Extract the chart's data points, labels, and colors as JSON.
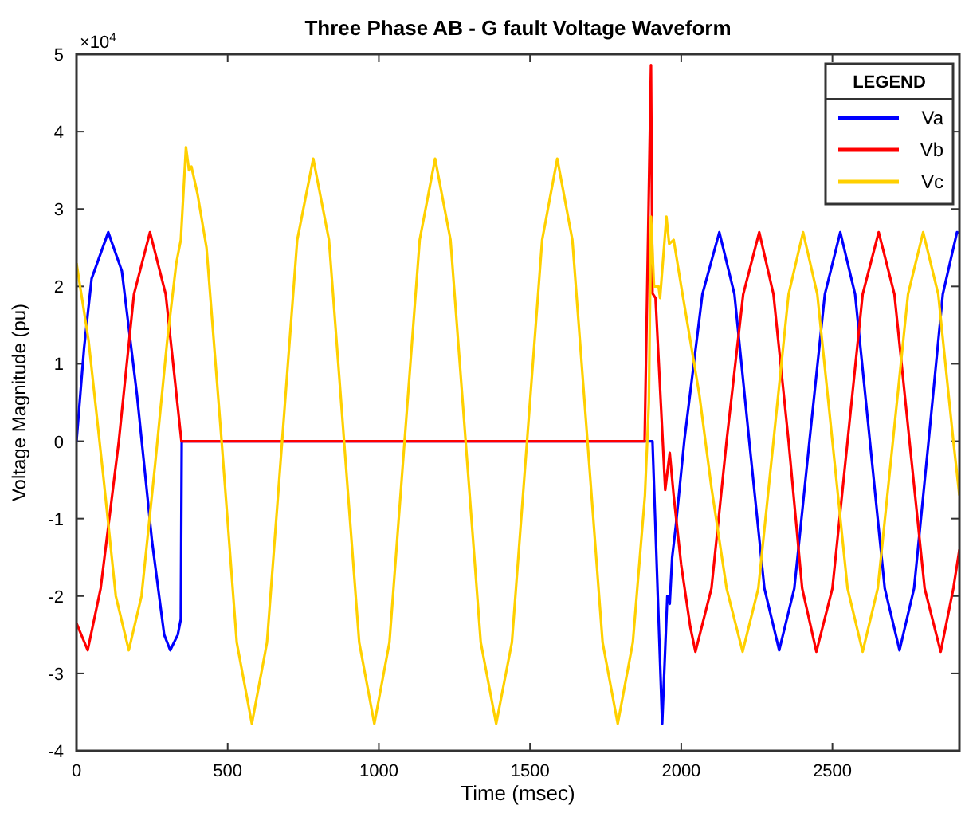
{
  "chart_data": {
    "type": "line",
    "title": "Three Phase AB  - G fault Voltage Waveform",
    "xlabel": "Time (msec)",
    "ylabel": "Voltage Magnitude (pu)",
    "legend_title": "LEGEND",
    "annotations": [
      "×10$^{4}$"
    ],
    "xlim": [
      0,
      2920
    ],
    "xticks": [
      0,
      500,
      1000,
      1500,
      2000,
      2500
    ],
    "ylim": [
      -4,
      5
    ],
    "yticks": [
      -4,
      -3,
      -2,
      -1,
      0,
      1,
      2,
      3,
      4,
      5
    ],
    "grid": false,
    "legend": "top right",
    "marker": "none",
    "line_style": "solid",
    "series": [
      {
        "name": "Va",
        "color": "#0000ff",
        "x": [
          0,
          25,
          50,
          105,
          150,
          200,
          250,
          290,
          310,
          335,
          345,
          348,
          1890,
          1905,
          1937,
          1954,
          1962,
          1970,
          1982,
          2010,
          2070,
          2126,
          2176,
          2225,
          2275,
          2324,
          2374,
          2424,
          2475,
          2526,
          2575,
          2624,
          2673,
          2722,
          2770,
          2818,
          2865,
          2912,
          2920
        ],
        "values": [
          0,
          1.2,
          2.1,
          2.7,
          2.2,
          0.6,
          -1.3,
          -2.5,
          -2.7,
          -2.5,
          -2.3,
          0,
          0,
          0,
          -3.65,
          -2.0,
          -2.1,
          -1.5,
          -1.1,
          0,
          1.9,
          2.7,
          1.9,
          0,
          -1.9,
          -2.7,
          -1.9,
          0,
          1.9,
          2.7,
          1.9,
          0,
          -1.9,
          -2.7,
          -1.9,
          0,
          1.9,
          2.7,
          2.69
        ]
      },
      {
        "name": "Vb",
        "color": "#ff0000",
        "x": [
          0,
          37,
          80,
          140,
          190,
          243,
          295,
          347,
          1879,
          1900,
          1905,
          1915,
          1947,
          1962,
          1975,
          2000,
          2030,
          2047,
          2100,
          2150,
          2205,
          2258,
          2305,
          2355,
          2400,
          2447,
          2500,
          2550,
          2600,
          2653,
          2705,
          2755,
          2805,
          2858,
          2900,
          2920
        ],
        "values": [
          -2.35,
          -2.7,
          -1.9,
          0,
          1.9,
          2.7,
          1.9,
          0,
          0,
          4.86,
          1.91,
          1.85,
          -0.63,
          -0.15,
          -0.7,
          -1.6,
          -2.4,
          -2.72,
          -1.9,
          0,
          1.9,
          2.7,
          1.9,
          0,
          -1.9,
          -2.72,
          -1.9,
          0,
          1.9,
          2.7,
          1.9,
          0,
          -1.9,
          -2.72,
          -1.9,
          -1.4
        ]
      },
      {
        "name": "Vc",
        "color": "#ffd000",
        "x": [
          0,
          40,
          90,
          130,
          173,
          215,
          260,
          300,
          330,
          345,
          362,
          372,
          380,
          400,
          430,
          480,
          530,
          580,
          630,
          680,
          730,
          783,
          835,
          885,
          935,
          985,
          1035,
          1085,
          1135,
          1186,
          1237,
          1287,
          1337,
          1388,
          1440,
          1490,
          1540,
          1590,
          1640,
          1690,
          1740,
          1790,
          1840,
          1880,
          1893,
          1900,
          1910,
          1925,
          1930,
          1951,
          1960,
          1975,
          2000,
          2060,
          2100,
          2150,
          2203,
          2255,
          2305,
          2355,
          2403,
          2450,
          2500,
          2550,
          2600,
          2650,
          2700,
          2750,
          2800,
          2850,
          2900,
          2920
        ],
        "values": [
          2.3,
          1.3,
          -0.5,
          -2.0,
          -2.7,
          -2.0,
          -0.3,
          1.3,
          2.3,
          2.6,
          3.8,
          3.5,
          3.55,
          3.2,
          2.5,
          0,
          -2.6,
          -3.65,
          -2.6,
          0,
          2.6,
          3.65,
          2.6,
          0,
          -2.6,
          -3.65,
          -2.6,
          0,
          2.6,
          3.65,
          2.6,
          0,
          -2.6,
          -3.65,
          -2.6,
          0,
          2.6,
          3.65,
          2.6,
          0,
          -2.6,
          -3.65,
          -2.6,
          -0.7,
          0.5,
          2.9,
          2.0,
          2.0,
          1.85,
          2.9,
          2.55,
          2.6,
          2.0,
          0.6,
          -0.6,
          -1.9,
          -2.72,
          -1.9,
          0,
          1.9,
          2.7,
          1.9,
          0,
          -1.9,
          -2.72,
          -1.9,
          0,
          1.9,
          2.7,
          1.9,
          0,
          -0.7
        ]
      }
    ]
  }
}
